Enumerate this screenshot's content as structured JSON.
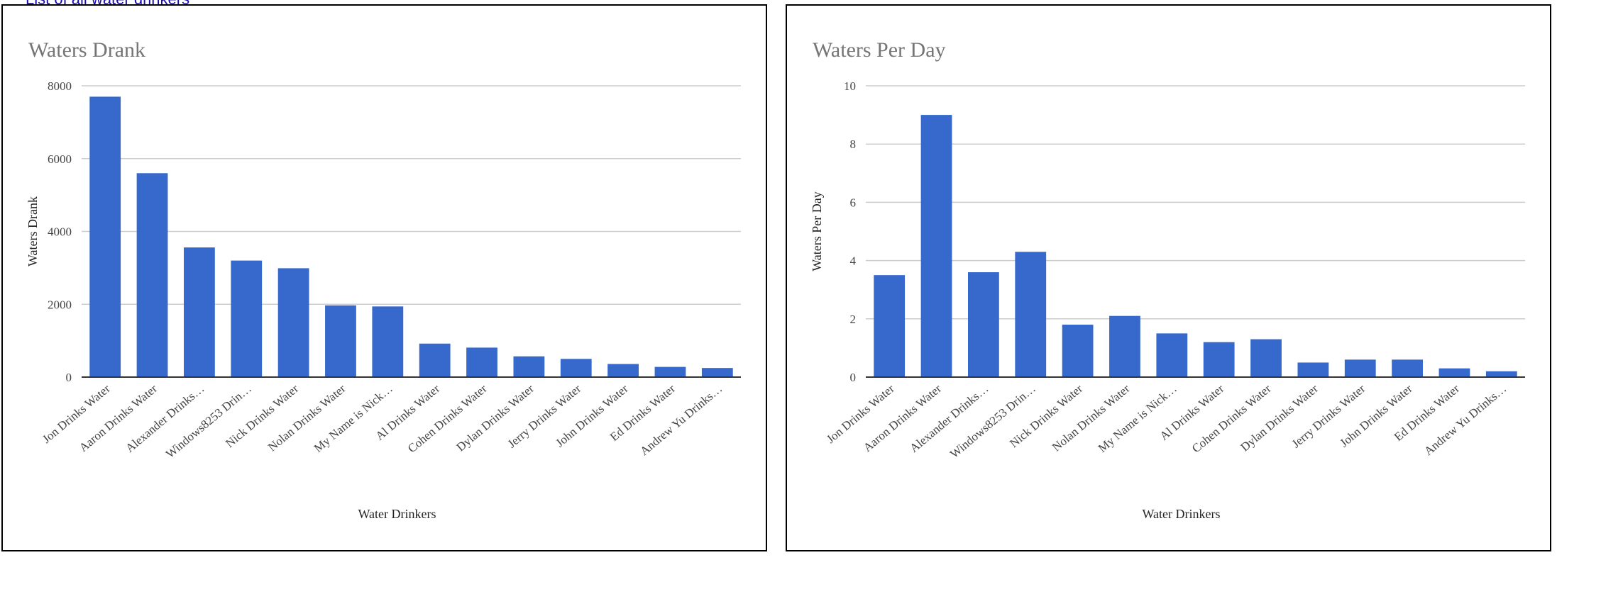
{
  "page": {
    "top_link": "List of all water drinkers"
  },
  "chart_data": [
    {
      "type": "bar",
      "title": "Waters Drank",
      "xlabel": "Water Drinkers",
      "ylabel": "Waters Drank",
      "ylim": [
        0,
        8000
      ],
      "yticks": [
        0,
        2000,
        4000,
        6000,
        8000
      ],
      "grid": true,
      "color": "#3769cd",
      "categories": [
        "Jon Drinks Water",
        "Aaron Drinks Water",
        "Alexander Drinks…",
        "Windows8253 Drin…",
        "Nick Drinks Water",
        "Nolan Drinks Water",
        "My Name is Nick…",
        "Al Drinks Water",
        "Cohen Drinks Water",
        "Dylan Drinks Water",
        "Jerry Drinks Water",
        "John Drinks Water",
        "Ed Drinks Water",
        "Andrew Yu Drinks…"
      ],
      "values": [
        7700,
        5600,
        3560,
        3200,
        2990,
        1970,
        1940,
        920,
        810,
        570,
        500,
        360,
        280,
        250
      ]
    },
    {
      "type": "bar",
      "title": "Waters Per Day",
      "xlabel": "Water Drinkers",
      "ylabel": "Waters Per Day",
      "ylim": [
        0,
        10
      ],
      "yticks": [
        0,
        2,
        4,
        6,
        8,
        10
      ],
      "grid": true,
      "color": "#3769cd",
      "categories": [
        "Jon Drinks Water",
        "Aaron Drinks Water",
        "Alexander Drinks…",
        "Windows8253 Drin…",
        "Nick Drinks Water",
        "Nolan Drinks Water",
        "My Name is Nick…",
        "Al Drinks Water",
        "Cohen Drinks Water",
        "Dylan Drinks Water",
        "Jerry Drinks Water",
        "John Drinks Water",
        "Ed Drinks Water",
        "Andrew Yu Drinks…"
      ],
      "values": [
        3.5,
        9.0,
        3.6,
        4.3,
        1.8,
        2.1,
        1.5,
        1.2,
        1.3,
        0.5,
        0.6,
        0.6,
        0.3,
        0.2
      ]
    }
  ]
}
